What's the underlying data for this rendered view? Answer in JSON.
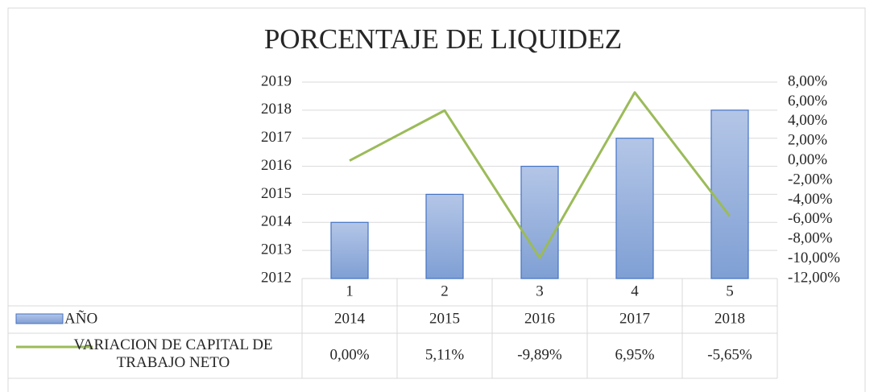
{
  "chart_data": {
    "type": "bar-line",
    "title": "PORCENTAJE DE LIQUIDEZ",
    "categories": [
      "1",
      "2",
      "3",
      "4",
      "5"
    ],
    "series": [
      {
        "name": "AÑO",
        "type": "bar",
        "color": "#8eaadb",
        "values": [
          2014,
          2015,
          2016,
          2017,
          2018
        ]
      },
      {
        "name": "VARIACION DE CAPITAL DE TRABAJO NETO",
        "type": "line",
        "axis": "y2",
        "color": "#9bbb59",
        "values": [
          0,
          5.11,
          -9.89,
          6.95,
          -5.65
        ],
        "value_labels": [
          "0,00%",
          "5,11%",
          "-9,89%",
          "6,95%",
          "-5,65%"
        ]
      }
    ],
    "ylim": [
      2012,
      2019
    ],
    "yticks": [
      2012,
      2013,
      2014,
      2015,
      2016,
      2017,
      2018,
      2019
    ],
    "y2lim": [
      -12,
      8
    ],
    "y2ticks": [
      {
        "value": -12,
        "label": "-12,00%"
      },
      {
        "value": -10,
        "label": "-10,00%"
      },
      {
        "value": -8,
        "label": "-8,00%"
      },
      {
        "value": -6,
        "label": "-6,00%"
      },
      {
        "value": -4,
        "label": "-4,00%"
      },
      {
        "value": -2,
        "label": "-2,00%"
      },
      {
        "value": 0,
        "label": "0,00%"
      },
      {
        "value": 2,
        "label": "2,00%"
      },
      {
        "value": 4,
        "label": "4,00%"
      },
      {
        "value": 6,
        "label": "6,00%"
      },
      {
        "value": 8,
        "label": "8,00%"
      }
    ],
    "grid": true,
    "data_table": true
  }
}
